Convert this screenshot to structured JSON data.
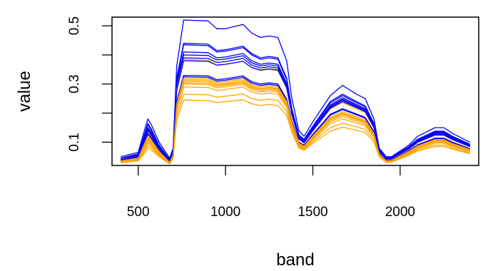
{
  "chart_data": {
    "type": "line",
    "title": "",
    "xlabel": "band",
    "ylabel": "value",
    "xlim": [
      350,
      2450
    ],
    "ylim": [
      0.02,
      0.53
    ],
    "xticks": [
      "500",
      "1000",
      "1500",
      "2000"
    ],
    "yticks": [
      "0.1",
      "0.3",
      "0.5"
    ],
    "grid": false,
    "legend": "none",
    "series_colors": {
      "blue": "#0000ff",
      "orange": "#ffa500"
    },
    "x": [
      400,
      500,
      540,
      555,
      575,
      620,
      680,
      700,
      720,
      760,
      900,
      950,
      1000,
      1100,
      1150,
      1200,
      1250,
      1300,
      1350,
      1380,
      1420,
      1450,
      1500,
      1600,
      1670,
      1750,
      1800,
      1850,
      1880,
      1920,
      1950,
      2050,
      2100,
      2200,
      2250,
      2300,
      2400
    ],
    "series": [
      {
        "color": "blue",
        "values": [
          0.05,
          0.065,
          0.15,
          0.18,
          0.16,
          0.1,
          0.045,
          0.08,
          0.36,
          0.52,
          0.517,
          0.49,
          0.49,
          0.505,
          0.475,
          0.46,
          0.465,
          0.46,
          0.38,
          0.25,
          0.14,
          0.12,
          0.17,
          0.26,
          0.295,
          0.265,
          0.25,
          0.18,
          0.08,
          0.05,
          0.05,
          0.09,
          0.12,
          0.15,
          0.15,
          0.13,
          0.1
        ]
      },
      {
        "color": "blue",
        "values": [
          0.045,
          0.06,
          0.135,
          0.165,
          0.145,
          0.09,
          0.04,
          0.075,
          0.32,
          0.44,
          0.437,
          0.415,
          0.418,
          0.43,
          0.405,
          0.39,
          0.395,
          0.39,
          0.32,
          0.215,
          0.125,
          0.11,
          0.155,
          0.24,
          0.265,
          0.24,
          0.225,
          0.165,
          0.075,
          0.046,
          0.047,
          0.085,
          0.11,
          0.138,
          0.138,
          0.12,
          0.093
        ]
      },
      {
        "color": "blue",
        "values": [
          0.044,
          0.058,
          0.13,
          0.16,
          0.14,
          0.087,
          0.039,
          0.073,
          0.31,
          0.435,
          0.432,
          0.41,
          0.413,
          0.425,
          0.4,
          0.385,
          0.39,
          0.385,
          0.315,
          0.212,
          0.123,
          0.108,
          0.152,
          0.235,
          0.26,
          0.236,
          0.221,
          0.162,
          0.074,
          0.045,
          0.046,
          0.083,
          0.108,
          0.135,
          0.135,
          0.118,
          0.091
        ]
      },
      {
        "color": "blue",
        "values": [
          0.042,
          0.055,
          0.125,
          0.15,
          0.133,
          0.083,
          0.037,
          0.07,
          0.3,
          0.41,
          0.408,
          0.39,
          0.393,
          0.405,
          0.38,
          0.368,
          0.372,
          0.368,
          0.302,
          0.205,
          0.118,
          0.104,
          0.147,
          0.228,
          0.253,
          0.23,
          0.215,
          0.158,
          0.072,
          0.044,
          0.045,
          0.081,
          0.105,
          0.132,
          0.132,
          0.115,
          0.089
        ]
      },
      {
        "color": "blue",
        "values": [
          0.041,
          0.054,
          0.122,
          0.148,
          0.131,
          0.081,
          0.036,
          0.069,
          0.295,
          0.4,
          0.398,
          0.383,
          0.386,
          0.397,
          0.373,
          0.362,
          0.366,
          0.362,
          0.297,
          0.202,
          0.116,
          0.102,
          0.145,
          0.224,
          0.248,
          0.226,
          0.212,
          0.156,
          0.071,
          0.043,
          0.044,
          0.08,
          0.103,
          0.13,
          0.13,
          0.113,
          0.088
        ]
      },
      {
        "color": "blue",
        "values": [
          0.04,
          0.052,
          0.118,
          0.143,
          0.127,
          0.079,
          0.035,
          0.067,
          0.285,
          0.39,
          0.388,
          0.374,
          0.377,
          0.388,
          0.365,
          0.355,
          0.359,
          0.355,
          0.292,
          0.198,
          0.114,
          0.1,
          0.142,
          0.22,
          0.244,
          0.222,
          0.208,
          0.153,
          0.07,
          0.042,
          0.043,
          0.078,
          0.101,
          0.127,
          0.127,
          0.111,
          0.086
        ]
      },
      {
        "color": "orange",
        "values": [
          0.04,
          0.05,
          0.11,
          0.135,
          0.12,
          0.075,
          0.034,
          0.064,
          0.28,
          0.385,
          0.382,
          0.365,
          0.368,
          0.378,
          0.356,
          0.346,
          0.35,
          0.346,
          0.285,
          0.192,
          0.11,
          0.097,
          0.138,
          0.214,
          0.236,
          0.215,
          0.202,
          0.149,
          0.068,
          0.041,
          0.042,
          0.076,
          0.098,
          0.123,
          0.123,
          0.108,
          0.084
        ]
      },
      {
        "color": "blue",
        "values": [
          0.038,
          0.048,
          0.108,
          0.13,
          0.116,
          0.073,
          0.033,
          0.062,
          0.24,
          0.33,
          0.328,
          0.315,
          0.318,
          0.328,
          0.308,
          0.3,
          0.304,
          0.3,
          0.248,
          0.172,
          0.1,
          0.09,
          0.127,
          0.196,
          0.215,
          0.197,
          0.185,
          0.137,
          0.063,
          0.038,
          0.039,
          0.071,
          0.091,
          0.114,
          0.114,
          0.1,
          0.078
        ]
      },
      {
        "color": "blue",
        "values": [
          0.037,
          0.047,
          0.105,
          0.127,
          0.113,
          0.071,
          0.032,
          0.06,
          0.235,
          0.325,
          0.323,
          0.31,
          0.313,
          0.323,
          0.303,
          0.295,
          0.299,
          0.295,
          0.244,
          0.17,
          0.098,
          0.088,
          0.125,
          0.193,
          0.212,
          0.194,
          0.182,
          0.135,
          0.062,
          0.037,
          0.038,
          0.07,
          0.09,
          0.112,
          0.112,
          0.098,
          0.077
        ]
      },
      {
        "color": "orange",
        "values": [
          0.036,
          0.045,
          0.1,
          0.12,
          0.107,
          0.068,
          0.031,
          0.058,
          0.23,
          0.32,
          0.318,
          0.305,
          0.308,
          0.318,
          0.298,
          0.29,
          0.294,
          0.29,
          0.24,
          0.166,
          0.096,
          0.086,
          0.121,
          0.186,
          0.205,
          0.188,
          0.176,
          0.13,
          0.06,
          0.036,
          0.037,
          0.068,
          0.087,
          0.109,
          0.109,
          0.095,
          0.075
        ]
      },
      {
        "color": "orange",
        "values": [
          0.035,
          0.044,
          0.095,
          0.115,
          0.103,
          0.066,
          0.03,
          0.056,
          0.225,
          0.315,
          0.313,
          0.3,
          0.303,
          0.313,
          0.293,
          0.285,
          0.289,
          0.285,
          0.236,
          0.163,
          0.094,
          0.084,
          0.118,
          0.182,
          0.2,
          0.183,
          0.172,
          0.127,
          0.059,
          0.035,
          0.036,
          0.066,
          0.085,
          0.106,
          0.106,
          0.093,
          0.073
        ]
      },
      {
        "color": "orange",
        "values": [
          0.034,
          0.042,
          0.09,
          0.108,
          0.097,
          0.063,
          0.029,
          0.054,
          0.22,
          0.305,
          0.303,
          0.292,
          0.295,
          0.304,
          0.285,
          0.278,
          0.282,
          0.278,
          0.23,
          0.159,
          0.092,
          0.082,
          0.115,
          0.176,
          0.194,
          0.178,
          0.167,
          0.124,
          0.058,
          0.034,
          0.035,
          0.064,
          0.083,
          0.103,
          0.103,
          0.09,
          0.071
        ]
      },
      {
        "color": "orange",
        "values": [
          0.033,
          0.041,
          0.085,
          0.102,
          0.092,
          0.06,
          0.028,
          0.052,
          0.215,
          0.3,
          0.298,
          0.287,
          0.29,
          0.299,
          0.28,
          0.273,
          0.277,
          0.273,
          0.226,
          0.156,
          0.09,
          0.08,
          0.112,
          0.171,
          0.188,
          0.173,
          0.162,
          0.121,
          0.057,
          0.034,
          0.035,
          0.063,
          0.081,
          0.1,
          0.1,
          0.088,
          0.069
        ]
      },
      {
        "color": "orange",
        "values": [
          0.032,
          0.04,
          0.08,
          0.096,
          0.087,
          0.058,
          0.027,
          0.05,
          0.205,
          0.29,
          0.288,
          0.278,
          0.281,
          0.29,
          0.272,
          0.265,
          0.269,
          0.265,
          0.22,
          0.152,
          0.088,
          0.078,
          0.108,
          0.164,
          0.18,
          0.166,
          0.156,
          0.117,
          0.056,
          0.033,
          0.034,
          0.061,
          0.078,
          0.096,
          0.096,
          0.085,
          0.067
        ]
      },
      {
        "color": "orange",
        "values": [
          0.03,
          0.038,
          0.072,
          0.088,
          0.08,
          0.054,
          0.026,
          0.047,
          0.19,
          0.265,
          0.263,
          0.255,
          0.258,
          0.266,
          0.25,
          0.244,
          0.248,
          0.244,
          0.205,
          0.143,
          0.084,
          0.075,
          0.102,
          0.15,
          0.165,
          0.153,
          0.144,
          0.109,
          0.053,
          0.031,
          0.032,
          0.058,
          0.074,
          0.09,
          0.09,
          0.08,
          0.063
        ]
      },
      {
        "color": "orange",
        "values": [
          0.029,
          0.036,
          0.065,
          0.08,
          0.073,
          0.05,
          0.025,
          0.044,
          0.175,
          0.245,
          0.243,
          0.236,
          0.239,
          0.246,
          0.232,
          0.226,
          0.23,
          0.226,
          0.192,
          0.135,
          0.08,
          0.072,
          0.096,
          0.138,
          0.152,
          0.141,
          0.133,
          0.102,
          0.05,
          0.03,
          0.031,
          0.055,
          0.07,
          0.085,
          0.085,
          0.076,
          0.06
        ]
      },
      {
        "color": "blue",
        "values": [
          0.039,
          0.05,
          0.115,
          0.14,
          0.124,
          0.077,
          0.034,
          0.065,
          0.275,
          0.38,
          0.378,
          0.365,
          0.368,
          0.378,
          0.357,
          0.348,
          0.352,
          0.348,
          0.287,
          0.195,
          0.112,
          0.098,
          0.14,
          0.217,
          0.24,
          0.219,
          0.205,
          0.151,
          0.069,
          0.042,
          0.043,
          0.077,
          0.1,
          0.125,
          0.125,
          0.109,
          0.085
        ]
      },
      {
        "color": "orange",
        "values": [
          0.034,
          0.043,
          0.093,
          0.112,
          0.1,
          0.065,
          0.03,
          0.055,
          0.222,
          0.31,
          0.308,
          0.296,
          0.299,
          0.308,
          0.289,
          0.282,
          0.286,
          0.282,
          0.233,
          0.161,
          0.093,
          0.083,
          0.117,
          0.18,
          0.198,
          0.181,
          0.17,
          0.126,
          0.059,
          0.035,
          0.036,
          0.065,
          0.084,
          0.105,
          0.105,
          0.092,
          0.072
        ]
      }
    ]
  }
}
